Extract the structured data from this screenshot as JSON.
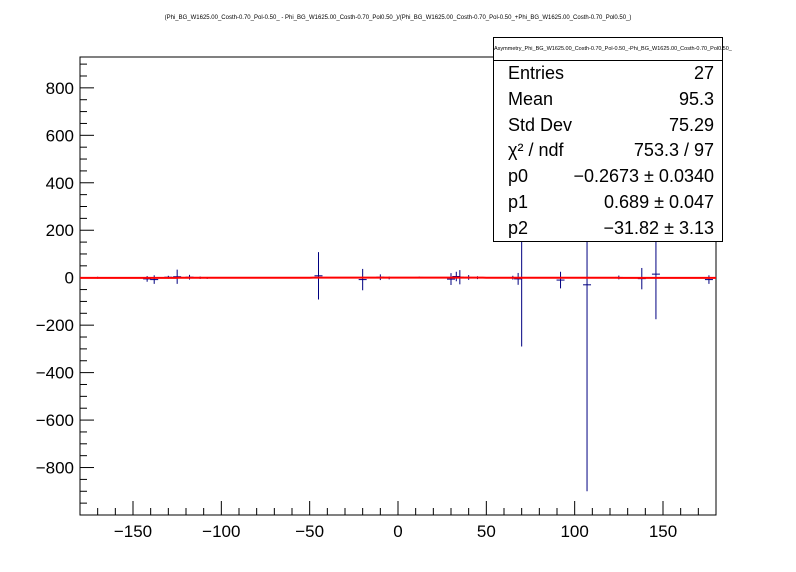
{
  "chart_data": {
    "type": "scatter",
    "title": "(Phi_BG_W1625.00_Costh-0.70_Pol-0.50_ - Phi_BG_W1625.00_Costh-0.70_Pol0.50_)/(Phi_BG_W1625.00_Costh-0.70_Pol-0.50_+Phi_BG_W1625.00_Costh-0.70_Pol0.50_)",
    "xlim": [
      -180,
      180
    ],
    "ylim": [
      -1000,
      930
    ],
    "x_ticks": [
      -150,
      -100,
      -50,
      0,
      50,
      100,
      150
    ],
    "y_ticks": [
      -800,
      -600,
      -400,
      -200,
      0,
      200,
      400,
      600,
      800
    ],
    "x_tick_labels": [
      "−150",
      "−100",
      "−50",
      "0",
      "50",
      "100",
      "150"
    ],
    "y_tick_labels": [
      "−800",
      "−600",
      "−400",
      "−200",
      "0",
      "200",
      "400",
      "600",
      "800"
    ],
    "grid": false,
    "marker_color": "#000080",
    "fit_color": "#ff0000",
    "points": [
      {
        "x": -170,
        "y": 0,
        "err": 4
      },
      {
        "x": -142,
        "y": -5,
        "err": 12
      },
      {
        "x": -138,
        "y": -8,
        "err": 18
      },
      {
        "x": -130,
        "y": 2,
        "err": 6
      },
      {
        "x": -125,
        "y": 4,
        "err": 30
      },
      {
        "x": -118,
        "y": 2,
        "err": 10
      },
      {
        "x": -112,
        "y": 0,
        "err": 5
      },
      {
        "x": -108,
        "y": -1,
        "err": 4
      },
      {
        "x": -45,
        "y": 8,
        "err": 100
      },
      {
        "x": -20,
        "y": -8,
        "err": 45
      },
      {
        "x": -10,
        "y": 2,
        "err": 12
      },
      {
        "x": -5,
        "y": -1,
        "err": 6
      },
      {
        "x": 12,
        "y": 1,
        "err": 4
      },
      {
        "x": 30,
        "y": -6,
        "err": 25
      },
      {
        "x": 33,
        "y": 5,
        "err": 20
      },
      {
        "x": 35,
        "y": 2,
        "err": 30
      },
      {
        "x": 40,
        "y": 1,
        "err": 10
      },
      {
        "x": 45,
        "y": 0,
        "err": 6
      },
      {
        "x": 65,
        "y": 0,
        "err": 8
      },
      {
        "x": 68,
        "y": -5,
        "err": 25
      },
      {
        "x": 70,
        "y": 0,
        "err": 290
      },
      {
        "x": 92,
        "y": -10,
        "err": 35
      },
      {
        "x": 107,
        "y": -30,
        "err": 870
      },
      {
        "x": 125,
        "y": 1,
        "err": 8
      },
      {
        "x": 138,
        "y": -4,
        "err": 45
      },
      {
        "x": 146,
        "y": 15,
        "err": 190
      },
      {
        "x": 176,
        "y": -8,
        "err": 18
      }
    ],
    "fit": {
      "p0": -0.2673,
      "p1": 0.689,
      "p2": -31.82
    }
  },
  "stats": {
    "title": "Asymmetry_Phi_BG_W1625.00_Costh-0.70_Pol-0.50_-Phi_BG_W1625.00_Costh-0.70_Pol0.50_",
    "rows": [
      {
        "label": "Entries",
        "value": "27"
      },
      {
        "label": "Mean",
        "value": "95.3"
      },
      {
        "label": "Std Dev",
        "value": "75.29"
      },
      {
        "label": "χ² / ndf",
        "value": "753.3 / 97"
      },
      {
        "label": "p0",
        "value": "−0.2673 ± 0.0340"
      },
      {
        "label": "p1",
        "value": "0.689 ± 0.047"
      },
      {
        "label": "p2",
        "value": "−31.82 ± 3.13"
      }
    ]
  }
}
